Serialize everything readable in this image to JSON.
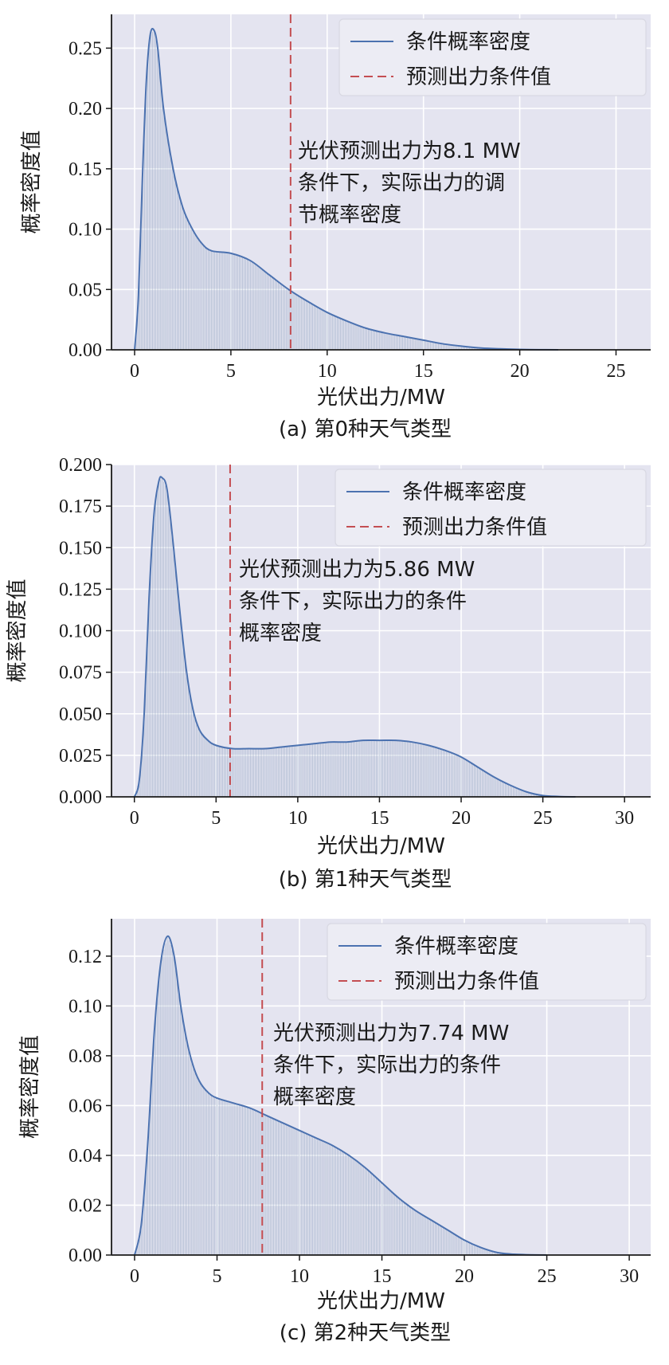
{
  "colors": {
    "plot_background": "#e4e4f0",
    "grid": "#ffffff",
    "density_line": "#4c72b0",
    "condition_line": "#c44e52",
    "fill_lines": "#8ea2bf",
    "legend_background": "#ececf4"
  },
  "chart_data": [
    {
      "type": "line",
      "caption": "(a) 第0种天气类型",
      "xlabel": "光伏出力/MW",
      "ylabel": "概率密度值",
      "xlim": [
        -1.2,
        26.8
      ],
      "ylim": [
        0,
        0.278
      ],
      "xticks": [
        0,
        5,
        10,
        15,
        20,
        25
      ],
      "xtick_labels": [
        "0",
        "5",
        "10",
        "15",
        "20",
        "25"
      ],
      "yticks": [
        0,
        0.05,
        0.1,
        0.15,
        0.2,
        0.25
      ],
      "ytick_labels": [
        "0.00",
        "0.05",
        "0.10",
        "0.15",
        "0.20",
        "0.25"
      ],
      "grid": true,
      "legend_position": "top-right",
      "series": [
        {
          "name": "条件概率密度",
          "style": "solid",
          "x": [
            0,
            0.2,
            0.4,
            0.6,
            0.8,
            1.0,
            1.2,
            1.5,
            2,
            2.5,
            3,
            3.5,
            4,
            5,
            6,
            7,
            8,
            9,
            10,
            11,
            12,
            13,
            14,
            15,
            16,
            17,
            18,
            19,
            20,
            21,
            22
          ],
          "y": [
            0,
            0.045,
            0.14,
            0.22,
            0.26,
            0.265,
            0.25,
            0.2,
            0.15,
            0.118,
            0.1,
            0.088,
            0.082,
            0.08,
            0.074,
            0.062,
            0.05,
            0.04,
            0.031,
            0.024,
            0.018,
            0.014,
            0.011,
            0.008,
            0.005,
            0.003,
            0.0015,
            0.0008,
            0.0003,
            0.0001,
            0
          ]
        },
        {
          "name": "预测出力条件值",
          "style": "dashed",
          "x_value": 8.1
        }
      ],
      "annotation": [
        "光伏预测出力为8.1 MW",
        "条件下，实际出力的调",
        "节概率密度"
      ]
    },
    {
      "type": "line",
      "caption": "(b) 第1种天气类型",
      "xlabel": "光伏出力/MW",
      "ylabel": "概率密度值",
      "xlim": [
        -1.4,
        31.6
      ],
      "ylim": [
        0,
        0.2
      ],
      "xticks": [
        0,
        5,
        10,
        15,
        20,
        25,
        30
      ],
      "xtick_labels": [
        "0",
        "5",
        "10",
        "15",
        "20",
        "25",
        "30"
      ],
      "yticks": [
        0,
        0.025,
        0.05,
        0.075,
        0.1,
        0.125,
        0.15,
        0.175,
        0.2
      ],
      "ytick_labels": [
        "0.000",
        "0.025",
        "0.050",
        "0.075",
        "0.100",
        "0.125",
        "0.150",
        "0.175",
        "0.200"
      ],
      "grid": true,
      "legend_position": "top-right",
      "series": [
        {
          "name": "条件概率密度",
          "style": "solid",
          "x": [
            0,
            0.3,
            0.6,
            0.9,
            1.2,
            1.5,
            1.7,
            2.0,
            2.4,
            2.8,
            3.2,
            3.6,
            4.0,
            4.5,
            5.0,
            6,
            7,
            8,
            9,
            10,
            11,
            12,
            13,
            14,
            15,
            16,
            17,
            18,
            19,
            20,
            21,
            22,
            23,
            24,
            25,
            26,
            27
          ],
          "y": [
            0,
            0.01,
            0.05,
            0.12,
            0.17,
            0.19,
            0.192,
            0.185,
            0.15,
            0.11,
            0.075,
            0.052,
            0.04,
            0.034,
            0.031,
            0.029,
            0.029,
            0.029,
            0.03,
            0.031,
            0.032,
            0.033,
            0.033,
            0.034,
            0.034,
            0.034,
            0.033,
            0.031,
            0.028,
            0.024,
            0.018,
            0.012,
            0.007,
            0.003,
            0.0008,
            0.0002,
            0
          ]
        },
        {
          "name": "预测出力条件值",
          "style": "dashed",
          "x_value": 5.86
        }
      ],
      "annotation": [
        "光伏预测出力为5.86 MW",
        "条件下，实际出力的条件",
        "概率密度"
      ]
    },
    {
      "type": "line",
      "caption": "(c) 第2种天气类型",
      "xlabel": "光伏出力/MW",
      "ylabel": "概率密度值",
      "xlim": [
        -1.4,
        31.3
      ],
      "ylim": [
        0,
        0.135
      ],
      "xticks": [
        0,
        5,
        10,
        15,
        20,
        25,
        30
      ],
      "xtick_labels": [
        "0",
        "5",
        "10",
        "15",
        "20",
        "25",
        "30"
      ],
      "yticks": [
        0,
        0.02,
        0.04,
        0.06,
        0.08,
        0.1,
        0.12
      ],
      "ytick_labels": [
        "0.00",
        "0.02",
        "0.04",
        "0.06",
        "0.08",
        "0.10",
        "0.12"
      ],
      "grid": true,
      "legend_position": "top-right",
      "series": [
        {
          "name": "条件概率密度",
          "style": "solid",
          "x": [
            0,
            0.4,
            0.8,
            1.2,
            1.6,
            2.0,
            2.4,
            2.8,
            3.2,
            3.6,
            4.0,
            4.5,
            5,
            6,
            7,
            8,
            9,
            10,
            11,
            12,
            13,
            14,
            15,
            16,
            17,
            18,
            19,
            20,
            21,
            22,
            23,
            24,
            25
          ],
          "y": [
            0,
            0.012,
            0.045,
            0.09,
            0.118,
            0.128,
            0.12,
            0.1,
            0.085,
            0.075,
            0.069,
            0.065,
            0.063,
            0.061,
            0.059,
            0.056,
            0.053,
            0.05,
            0.047,
            0.044,
            0.04,
            0.035,
            0.029,
            0.023,
            0.018,
            0.014,
            0.01,
            0.006,
            0.003,
            0.001,
            0.0003,
            0.0001,
            0
          ]
        },
        {
          "name": "预测出力条件值",
          "style": "dashed",
          "x_value": 7.74
        }
      ],
      "annotation": [
        "光伏预测出力为7.74 MW",
        "条件下，实际出力的条件",
        "概率密度"
      ]
    }
  ]
}
